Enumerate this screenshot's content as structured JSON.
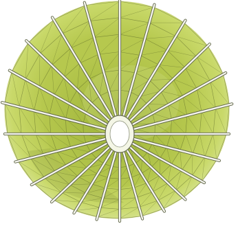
{
  "image": {
    "background": "#ffffff",
    "colors": {
      "outer_rim": "#d9e59a",
      "outer_surface": "#c9d96a",
      "mid_surface": "#b6c84e",
      "inner_surface": "#9fb43c",
      "shadow_lobe": "#8a9a3a",
      "throat_rim": "#f4f6e6",
      "mesh_line": "#4f5a22",
      "rib_light": "#f6f6ee",
      "rib_dark": "#5d6346"
    }
  }
}
